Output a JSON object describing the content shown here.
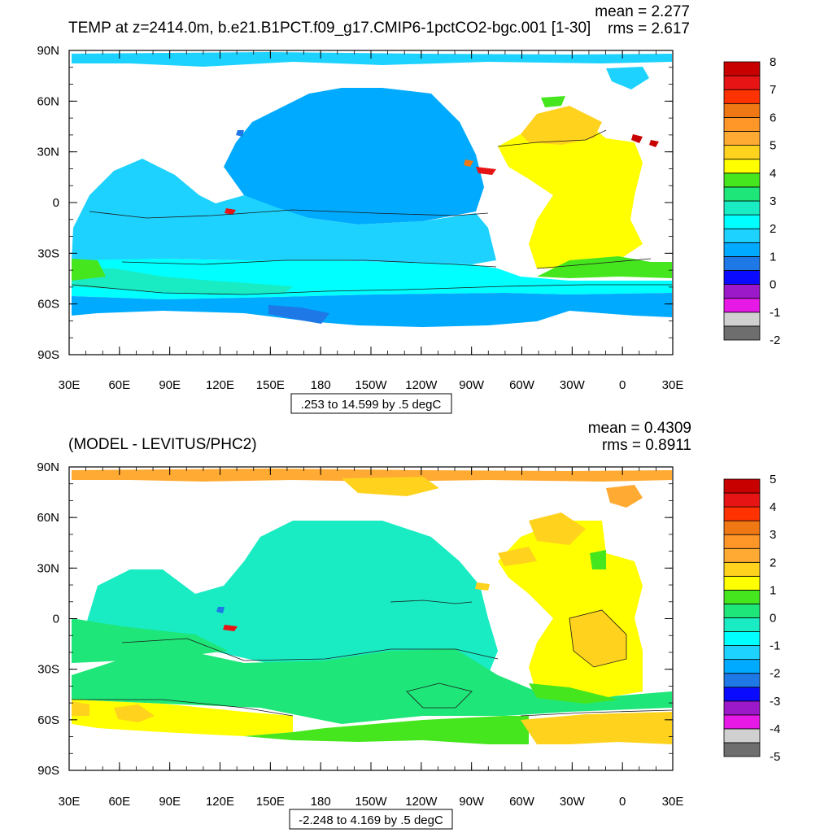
{
  "panels": [
    {
      "title": "TEMP at z=2414.0m, b.e21.B1PCT.f09_g17.CMIP6-1pctCO2-bgc.001 [1-30]",
      "mean_label": "mean = 2.277",
      "rms_label": "rms = 2.617",
      "range_label": ".253 to 14.599 by .5 degC",
      "lat_ticks": [
        "90N",
        "60N",
        "30N",
        "0",
        "30S",
        "60S",
        "90S"
      ],
      "lon_ticks": [
        "30E",
        "60E",
        "90E",
        "120E",
        "150E",
        "180",
        "150W",
        "120W",
        "90W",
        "60W",
        "30W",
        "0",
        "30E"
      ],
      "colorbar_labels": [
        "8",
        "7",
        "6",
        "5",
        "4",
        "3",
        "2",
        "1",
        "0",
        "-1",
        "-2"
      ]
    },
    {
      "title": "(MODEL - LEVITUS/PHC2)",
      "mean_label": "mean = 0.4309",
      "rms_label": "rms = 0.8911",
      "range_label": "-2.248 to 4.169 by .5 degC",
      "lat_ticks": [
        "90N",
        "60N",
        "30N",
        "0",
        "30S",
        "60S",
        "90S"
      ],
      "lon_ticks": [
        "30E",
        "60E",
        "90E",
        "120E",
        "150E",
        "180",
        "150W",
        "120W",
        "90W",
        "60W",
        "30W",
        "0",
        "30E"
      ],
      "colorbar_labels": [
        "5",
        "4",
        "3",
        "2",
        "1",
        "0",
        "-1",
        "-2",
        "-3",
        "-4",
        "-5"
      ]
    }
  ],
  "colorbar_colors": [
    "#6e6e6e",
    "#d0d0d0",
    "#e619e6",
    "#9b19c8",
    "#0a0aff",
    "#1e78e6",
    "#00aaff",
    "#1ed2ff",
    "#00ffff",
    "#19ebc3",
    "#1ee678",
    "#46e61e",
    "#ffff00",
    "#ffd21e",
    "#ffaa32",
    "#ff9628",
    "#f07814",
    "#ff3200",
    "#e61414",
    "#c80000"
  ],
  "colors": {
    "land": "#ffffff",
    "contour": "#1a1a1a"
  }
}
